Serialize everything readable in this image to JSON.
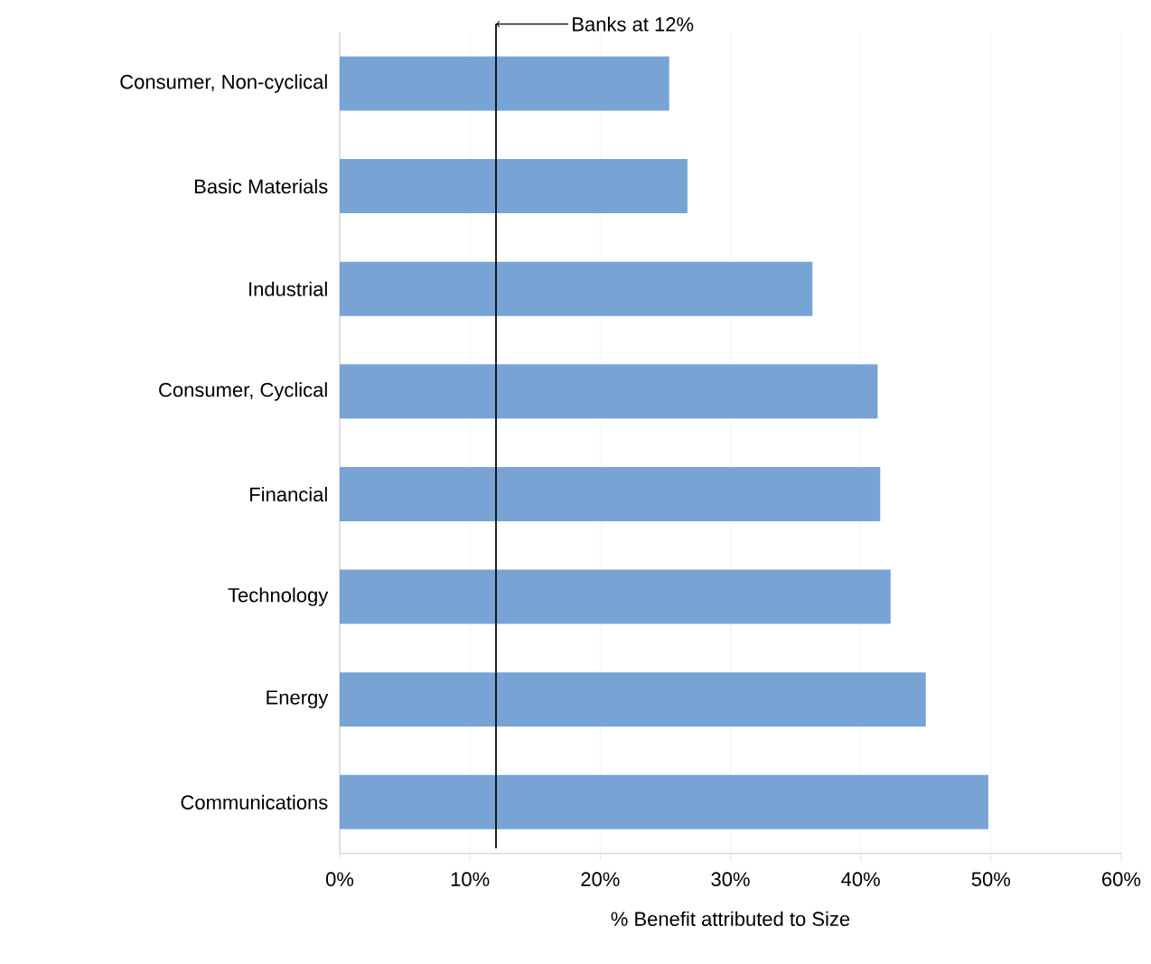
{
  "chart_data": {
    "type": "bar",
    "orientation": "horizontal",
    "xlabel": "% Benefit attributed to Size",
    "categories": [
      "Consumer, Non-cyclical",
      "Basic Materials",
      "Industrial",
      "Consumer, Cyclical",
      "Financial",
      "Technology",
      "Energy",
      "Communications"
    ],
    "values": [
      25.3,
      26.7,
      36.3,
      41.3,
      41.5,
      42.3,
      45.0,
      49.8
    ],
    "color": "#77a4d4",
    "xlim": [
      0,
      60
    ],
    "xticks": [
      {
        "value": 0,
        "label": "0%"
      },
      {
        "value": 10,
        "label": "10%"
      },
      {
        "value": 20,
        "label": "20%"
      },
      {
        "value": 30,
        "label": "30%"
      },
      {
        "value": 40,
        "label": "40%"
      },
      {
        "value": 50,
        "label": "50%"
      },
      {
        "value": 60,
        "label": "60%"
      }
    ],
    "grid": "x",
    "ref_lines": [
      {
        "axis": "x",
        "value": 12,
        "label": "Banks at 12%",
        "color": "#000000"
      }
    ]
  }
}
